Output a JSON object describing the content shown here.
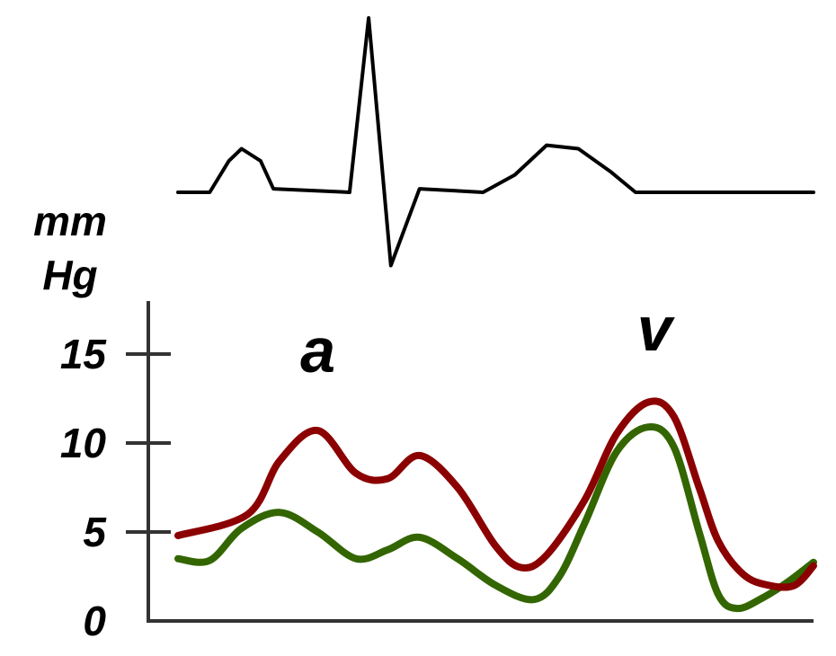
{
  "chart_data": [
    {
      "type": "line",
      "series": [
        {
          "values": [
            [
              0,
              0
            ],
            [
              0.05,
              0
            ],
            [
              0.08,
              0.18
            ],
            [
              0.1,
              0.25
            ],
            [
              0.13,
              0.18
            ],
            [
              0.15,
              0.02
            ],
            [
              0.27,
              0
            ],
            [
              0.3,
              1.0
            ],
            [
              0.335,
              -0.42
            ],
            [
              0.38,
              0.02
            ],
            [
              0.48,
              0
            ],
            [
              0.53,
              0.1
            ],
            [
              0.58,
              0.27
            ],
            [
              0.63,
              0.25
            ],
            [
              0.68,
              0.12
            ],
            [
              0.72,
              0
            ],
            [
              1.0,
              0
            ]
          ]
        }
      ],
      "color": "#000000"
    },
    {
      "type": "line",
      "ylabel": "mm Hg",
      "ylabel_lines": [
        "mm",
        "Hg"
      ],
      "yticks": [
        0,
        5,
        10,
        15
      ],
      "ylim": [
        0,
        17.5
      ],
      "xlim": [
        0,
        1
      ],
      "annotations": [
        {
          "text": "a",
          "x": 0.22,
          "y": 14.0
        },
        {
          "text": "v",
          "x": 0.75,
          "y": 15.2
        }
      ],
      "series": [
        {
          "color": "#8b0000",
          "x": [
            0,
            0.11,
            0.16,
            0.22,
            0.28,
            0.33,
            0.38,
            0.44,
            0.5,
            0.54,
            0.58,
            0.64,
            0.69,
            0.74,
            0.78,
            0.82,
            0.85,
            0.89,
            0.93,
            0.97,
            1.0
          ],
          "values": [
            4.8,
            6.0,
            9.0,
            10.7,
            8.3,
            8.0,
            9.3,
            7.5,
            4.2,
            3.0,
            3.7,
            6.8,
            10.5,
            12.3,
            11.5,
            7.5,
            4.5,
            2.6,
            2.0,
            2.0,
            3.1
          ]
        },
        {
          "color": "#336600",
          "x": [
            0,
            0.05,
            0.1,
            0.16,
            0.22,
            0.28,
            0.33,
            0.38,
            0.44,
            0.5,
            0.56,
            0.6,
            0.64,
            0.69,
            0.74,
            0.78,
            0.82,
            0.85,
            0.88,
            0.92,
            0.96,
            1.0
          ],
          "values": [
            3.5,
            3.4,
            5.2,
            6.1,
            5.0,
            3.5,
            4.0,
            4.7,
            3.5,
            2.0,
            1.2,
            2.5,
            5.5,
            9.5,
            10.9,
            9.8,
            5.0,
            1.5,
            0.7,
            1.3,
            2.2,
            3.3
          ]
        }
      ]
    }
  ],
  "colors": {
    "axis": "#333333",
    "ecg": "#000000",
    "red_curve": "#8b0000",
    "green_curve": "#336600"
  }
}
